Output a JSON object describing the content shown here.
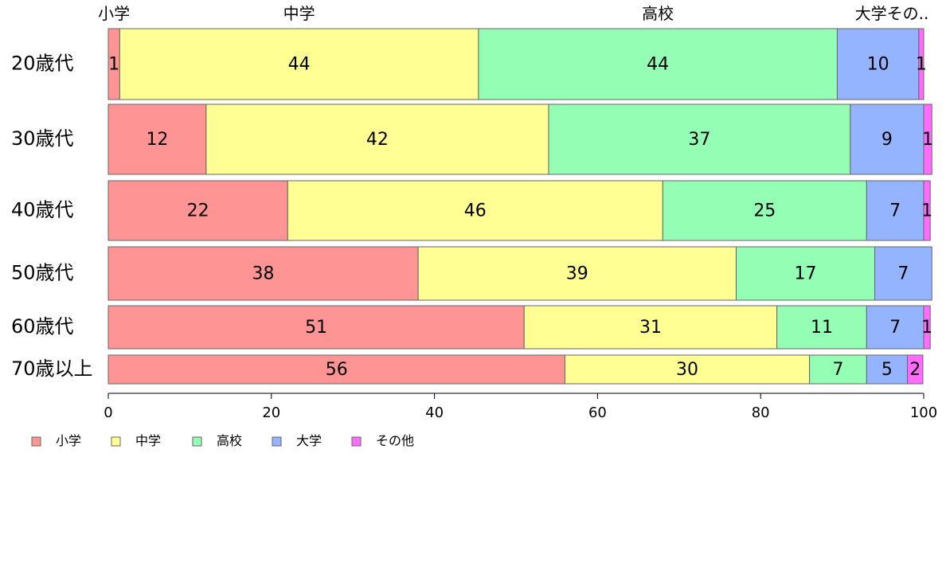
{
  "chart_data": {
    "type": "bar",
    "orientation": "horizontal",
    "stacked": true,
    "categories": [
      "20歳代",
      "30歳代",
      "40歳代",
      "50歳代",
      "60歳代",
      "70歳以上"
    ],
    "series": [
      {
        "name": "小学",
        "color": "#ff9494",
        "values": [
          1.4,
          12,
          22,
          38,
          51,
          56
        ],
        "labels": [
          "1",
          "12",
          "22",
          "38",
          "51",
          "56"
        ]
      },
      {
        "name": "中学",
        "color": "#ffff94",
        "values": [
          44,
          42,
          46,
          39,
          31,
          30
        ],
        "labels": [
          "44",
          "42",
          "46",
          "39",
          "31",
          "30"
        ]
      },
      {
        "name": "高校",
        "color": "#94ffb4",
        "values": [
          44,
          37,
          25,
          17,
          11,
          7
        ],
        "labels": [
          "44",
          "37",
          "25",
          "17",
          "11",
          "7"
        ]
      },
      {
        "name": "大学",
        "color": "#94b4ff",
        "values": [
          10,
          9,
          7,
          7,
          7,
          5
        ],
        "labels": [
          "10",
          "9",
          "7",
          "7",
          "7",
          "5"
        ]
      },
      {
        "name": "その他",
        "color": "#ff6bff",
        "values": [
          0.6,
          1,
          0.8,
          0,
          0.8,
          1.9
        ],
        "labels": [
          "1",
          "1",
          "1",
          "",
          "1",
          "2"
        ]
      }
    ],
    "top_labels": [
      "小学",
      "中学",
      "高校",
      "大学その.."
    ],
    "xlim": [
      0,
      100
    ],
    "xticks": [
      "0",
      "20",
      "40",
      "60",
      "80",
      "100"
    ],
    "grid": false,
    "legend_position": "bottom-left"
  }
}
